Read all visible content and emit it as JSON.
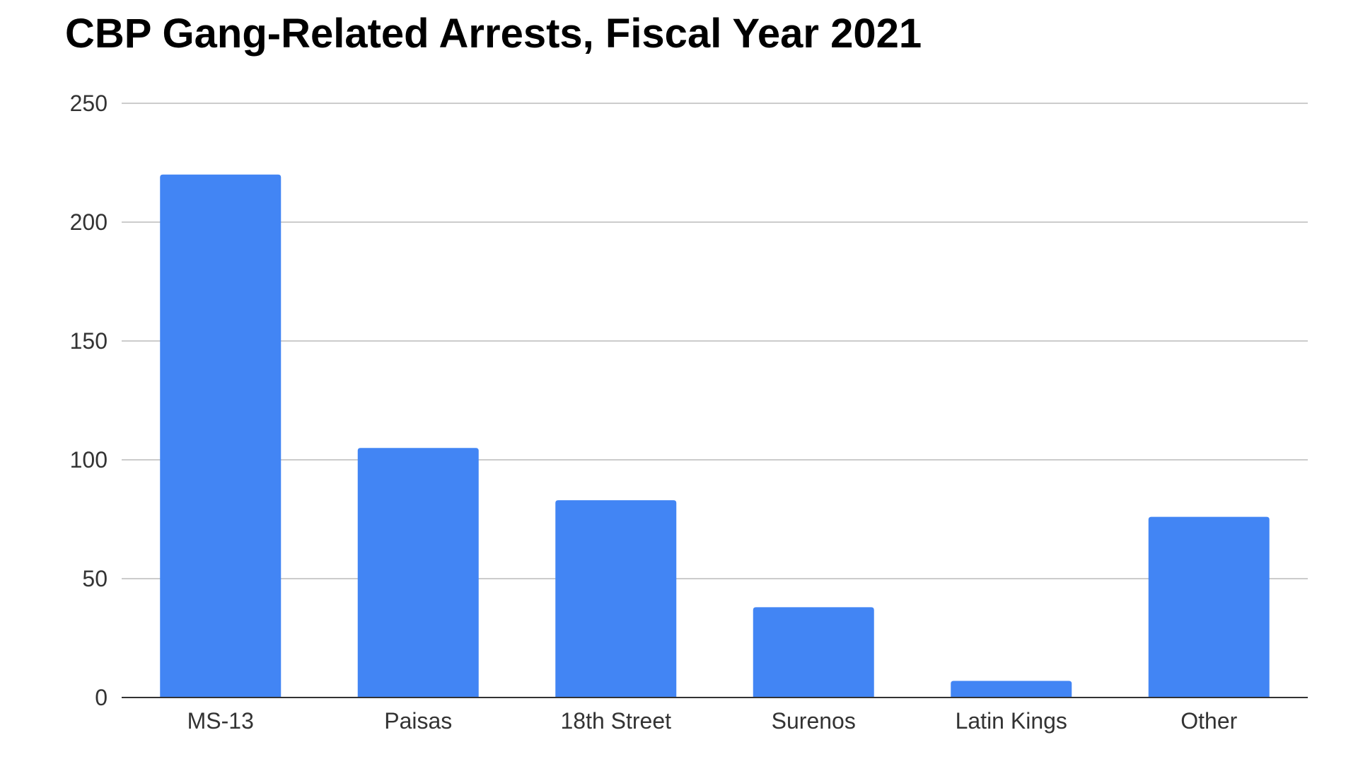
{
  "chart_data": {
    "type": "bar",
    "title": "CBP Gang-Related Arrests, Fiscal Year 2021",
    "xlabel": "",
    "ylabel": "",
    "categories": [
      "MS-13",
      "Paisas",
      "18th Street",
      "Surenos",
      "Latin Kings",
      "Other"
    ],
    "values": [
      220,
      105,
      83,
      38,
      7,
      76
    ],
    "ylim": [
      0,
      250
    ],
    "yticks": [
      0,
      50,
      100,
      150,
      200,
      250
    ],
    "grid": true,
    "legend": "none",
    "bar_color": "#4285f4"
  }
}
